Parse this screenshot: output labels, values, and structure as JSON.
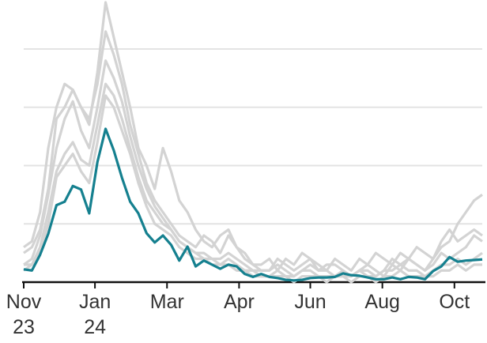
{
  "chart_data": {
    "type": "line",
    "x": [
      0,
      1,
      2,
      3,
      4,
      5,
      6,
      7,
      8,
      9,
      10,
      11,
      12,
      13,
      14,
      15,
      16,
      17,
      18,
      19,
      20,
      21,
      22,
      23,
      24,
      25,
      26,
      27,
      28,
      29,
      30,
      31,
      32,
      33,
      34,
      35,
      36,
      37,
      38,
      39,
      40,
      41,
      42,
      43,
      44,
      45,
      46,
      47,
      48,
      49,
      50,
      51,
      52,
      53,
      54,
      55,
      56
    ],
    "xlim": [
      0,
      56
    ],
    "xticks": [
      {
        "value": 0,
        "label": "Nov\n23"
      },
      {
        "value": 8.7,
        "label": "Jan\n24"
      },
      {
        "value": 17.5,
        "label": "Mar"
      },
      {
        "value": 26.3,
        "label": "Apr"
      },
      {
        "value": 35,
        "label": "Jun"
      },
      {
        "value": 43.8,
        "label": "Aug"
      },
      {
        "value": 52.6,
        "label": "Oct"
      }
    ],
    "ylim": [
      0,
      4.84
    ],
    "ygrid": [
      1,
      2,
      3,
      4
    ],
    "series": [
      {
        "color": "#d3d3d3",
        "values": [
          0.5,
          0.6,
          0.9,
          1.6,
          2.8,
          3.0,
          3.3,
          3.0,
          2.7,
          3.6,
          4.8,
          4.2,
          3.6,
          3.0,
          2.3,
          2.0,
          1.6,
          2.3,
          1.9,
          1.4,
          1.2,
          0.9,
          0.7,
          0.6,
          0.8,
          0.9,
          0.6,
          0.5,
          0.3,
          0.2,
          0.2,
          0.4,
          0.3,
          0.2,
          0.3,
          0.4,
          0.2,
          0.3,
          0.3,
          0.2,
          0.1,
          0.2,
          0.3,
          0.2,
          0.1,
          0.3,
          0.2,
          0.4,
          0.3,
          0.2,
          0.4,
          0.6,
          0.7,
          1.0,
          1.2,
          1.4,
          1.5
        ]
      },
      {
        "color": "#d3d3d3",
        "values": [
          0.6,
          0.7,
          1.2,
          2.3,
          3.0,
          3.4,
          3.3,
          3.0,
          2.8,
          3.4,
          4.3,
          3.9,
          3.4,
          2.7,
          2.2,
          1.7,
          1.4,
          1.2,
          1.0,
          0.8,
          0.7,
          0.6,
          0.8,
          0.7,
          0.5,
          0.8,
          0.6,
          0.4,
          0.3,
          0.3,
          0.4,
          0.2,
          0.4,
          0.3,
          0.5,
          0.4,
          0.3,
          0.2,
          0.4,
          0.3,
          0.2,
          0.4,
          0.3,
          0.5,
          0.4,
          0.3,
          0.5,
          0.4,
          0.6,
          0.5,
          0.4,
          0.7,
          0.9,
          0.7,
          0.8,
          0.9,
          0.8
        ]
      },
      {
        "color": "#d3d3d3",
        "values": [
          0.3,
          0.4,
          0.8,
          1.5,
          2.3,
          2.8,
          3.1,
          2.6,
          2.3,
          3.0,
          3.8,
          3.5,
          3.1,
          2.5,
          2.0,
          1.6,
          1.3,
          1.1,
          0.9,
          0.7,
          0.6,
          0.5,
          0.5,
          0.4,
          0.4,
          0.5,
          0.4,
          0.3,
          0.2,
          0.2,
          0.2,
          0.3,
          0.2,
          0.1,
          0.2,
          0.3,
          0.2,
          0.2,
          0.1,
          0.2,
          0.1,
          0.2,
          0.2,
          0.1,
          0.2,
          0.4,
          0.3,
          0.4,
          0.3,
          0.2,
          0.3,
          0.5,
          0.4,
          0.5,
          0.6,
          0.8,
          0.7
        ]
      },
      {
        "color": "#d3d3d3",
        "values": [
          0.2,
          0.3,
          0.6,
          1.2,
          1.9,
          2.2,
          2.4,
          2.1,
          2.0,
          2.7,
          3.4,
          3.2,
          2.8,
          2.3,
          1.8,
          1.4,
          1.2,
          1.0,
          0.9,
          0.7,
          0.6,
          0.5,
          0.4,
          0.4,
          0.3,
          0.4,
          0.3,
          0.2,
          0.2,
          0.1,
          0.1,
          0.2,
          0.1,
          0.1,
          0.2,
          0.2,
          0.1,
          0.1,
          0.1,
          0.1,
          0.1,
          0.2,
          0.1,
          0.1,
          0.2,
          0.2,
          0.3,
          0.2,
          0.2,
          0.1,
          0.2,
          0.3,
          0.3,
          0.4,
          0.3,
          0.4,
          0.5
        ]
      },
      {
        "color": "#d3d3d3",
        "values": [
          0.3,
          0.3,
          0.5,
          1.0,
          1.8,
          2.0,
          2.2,
          1.9,
          1.7,
          2.4,
          3.2,
          3.0,
          2.6,
          2.2,
          1.7,
          1.3,
          1.0,
          0.9,
          0.8,
          0.6,
          0.5,
          0.4,
          0.4,
          0.3,
          0.3,
          0.3,
          0.2,
          0.2,
          0.1,
          0.1,
          0.1,
          0.1,
          0.1,
          0.0,
          0.1,
          0.1,
          0.1,
          0.0,
          0.1,
          0.1,
          0.0,
          0.1,
          0.1,
          0.0,
          0.1,
          0.1,
          0.2,
          0.1,
          0.1,
          0.1,
          0.1,
          0.2,
          0.2,
          0.3,
          0.2,
          0.3,
          0.3
        ]
      },
      {
        "color": "#15808f",
        "values": [
          0.22,
          0.2,
          0.47,
          0.83,
          1.32,
          1.38,
          1.65,
          1.59,
          1.18,
          2.06,
          2.63,
          2.26,
          1.79,
          1.38,
          1.18,
          0.84,
          0.68,
          0.8,
          0.64,
          0.37,
          0.61,
          0.27,
          0.37,
          0.3,
          0.23,
          0.3,
          0.27,
          0.14,
          0.09,
          0.14,
          0.09,
          0.07,
          0.04,
          0.03,
          0.04,
          0.07,
          0.08,
          0.08,
          0.09,
          0.15,
          0.12,
          0.11,
          0.08,
          0.05,
          0.05,
          0.08,
          0.05,
          0.09,
          0.08,
          0.05,
          0.19,
          0.27,
          0.43,
          0.35,
          0.37,
          0.38,
          0.39
        ]
      }
    ]
  }
}
